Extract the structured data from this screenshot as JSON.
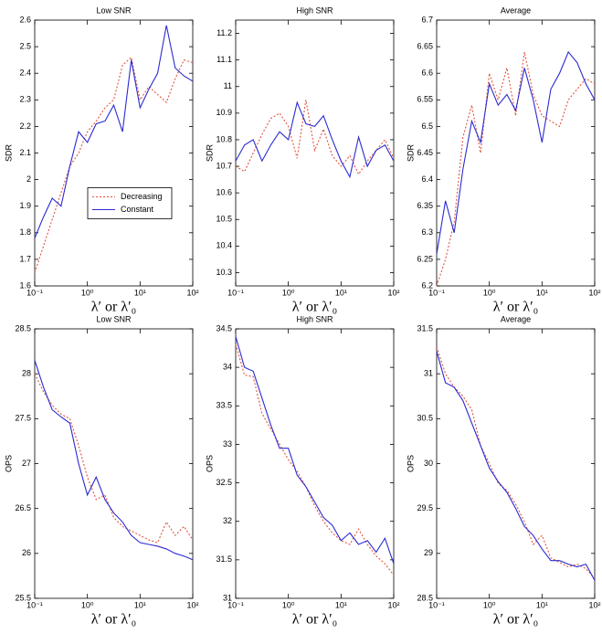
{
  "chart_data": [
    {
      "type": "line",
      "title": "Low SNR",
      "ylabel": "SDR",
      "xlabel": "λ′ or λ′₀",
      "xscale": "log",
      "legend": "center left",
      "x": [
        0.1,
        0.147,
        0.215,
        0.316,
        0.464,
        0.681,
        1,
        1.468,
        2.154,
        3.162,
        4.642,
        6.813,
        10,
        14.68,
        21.54,
        31.62,
        46.42,
        68.13,
        100
      ],
      "xlim": [
        0.1,
        100
      ],
      "xticks": [
        {
          "value": 0.1,
          "label": "10⁻¹"
        },
        {
          "value": 1,
          "label": "10⁰"
        },
        {
          "value": 10,
          "label": "10¹"
        },
        {
          "value": 100,
          "label": "10²"
        }
      ],
      "ylim": [
        1.6,
        2.6
      ],
      "yticks": [
        1.6,
        1.7,
        1.8,
        1.9,
        2,
        2.1,
        2.2,
        2.3,
        2.4,
        2.5,
        2.6
      ],
      "series": [
        {
          "name": "Decreasing",
          "color": "#e0533c",
          "linestyle": "dotted",
          "values": [
            1.65,
            1.75,
            1.85,
            1.95,
            2.05,
            2.1,
            2.18,
            2.22,
            2.27,
            2.3,
            2.43,
            2.46,
            2.3,
            2.35,
            2.32,
            2.29,
            2.38,
            2.45,
            2.44
          ]
        },
        {
          "name": "Constant",
          "color": "#2b2bd1",
          "linestyle": "solid",
          "values": [
            1.78,
            1.86,
            1.93,
            1.9,
            2.05,
            2.18,
            2.14,
            2.21,
            2.22,
            2.28,
            2.18,
            2.45,
            2.27,
            2.34,
            2.4,
            2.58,
            2.42,
            2.39,
            2.37
          ]
        }
      ]
    },
    {
      "type": "line",
      "title": "High SNR",
      "ylabel": "SDR",
      "xlabel": "λ′ or λ′₀",
      "xscale": "log",
      "x": [
        0.1,
        0.147,
        0.215,
        0.316,
        0.464,
        0.681,
        1,
        1.468,
        2.154,
        3.162,
        4.642,
        6.813,
        10,
        14.68,
        21.54,
        31.62,
        46.42,
        68.13,
        100
      ],
      "xlim": [
        0.1,
        100
      ],
      "xticks": [
        {
          "value": 0.1,
          "label": "10⁻¹"
        },
        {
          "value": 1,
          "label": "10⁰"
        },
        {
          "value": 10,
          "label": "10¹"
        },
        {
          "value": 100,
          "label": "10²"
        }
      ],
      "ylim": [
        10.25,
        11.25
      ],
      "yticks": [
        10.3,
        10.4,
        10.5,
        10.6,
        10.7,
        10.8,
        10.9,
        11,
        11.1,
        11.2
      ],
      "series": [
        {
          "color": "#e0533c",
          "linestyle": "dotted",
          "values": [
            10.7,
            10.68,
            10.75,
            10.82,
            10.88,
            10.9,
            10.85,
            10.73,
            10.95,
            10.76,
            10.84,
            10.74,
            10.7,
            10.74,
            10.67,
            10.72,
            10.76,
            10.8,
            10.73
          ]
        },
        {
          "color": "#2b2bd1",
          "linestyle": "solid",
          "values": [
            10.72,
            10.78,
            10.8,
            10.72,
            10.78,
            10.83,
            10.8,
            10.94,
            10.86,
            10.85,
            10.89,
            10.8,
            10.72,
            10.66,
            10.81,
            10.7,
            10.76,
            10.78,
            10.72
          ]
        }
      ]
    },
    {
      "type": "line",
      "title": "Average",
      "ylabel": "SDR",
      "xlabel": "λ′ or λ′₀",
      "xscale": "log",
      "x": [
        0.1,
        0.147,
        0.215,
        0.316,
        0.464,
        0.681,
        1,
        1.468,
        2.154,
        3.162,
        4.642,
        6.813,
        10,
        14.68,
        21.54,
        31.62,
        46.42,
        68.13,
        100
      ],
      "xlim": [
        0.1,
        100
      ],
      "xticks": [
        {
          "value": 0.1,
          "label": "10⁻¹"
        },
        {
          "value": 1,
          "label": "10⁰"
        },
        {
          "value": 10,
          "label": "10¹"
        },
        {
          "value": 100,
          "label": "10²"
        }
      ],
      "ylim": [
        6.2,
        6.7
      ],
      "yticks": [
        6.2,
        6.25,
        6.3,
        6.35,
        6.4,
        6.45,
        6.5,
        6.55,
        6.6,
        6.65,
        6.7
      ],
      "series": [
        {
          "color": "#e0533c",
          "linestyle": "dotted",
          "values": [
            6.2,
            6.25,
            6.32,
            6.48,
            6.54,
            6.45,
            6.6,
            6.55,
            6.61,
            6.52,
            6.64,
            6.56,
            6.52,
            6.51,
            6.5,
            6.55,
            6.57,
            6.59,
            6.58
          ]
        },
        {
          "color": "#2b2bd1",
          "linestyle": "solid",
          "values": [
            6.26,
            6.36,
            6.3,
            6.42,
            6.51,
            6.47,
            6.58,
            6.54,
            6.56,
            6.53,
            6.61,
            6.55,
            6.47,
            6.57,
            6.6,
            6.64,
            6.62,
            6.58,
            6.55
          ]
        }
      ]
    },
    {
      "type": "line",
      "title": "Low SNR",
      "ylabel": "OPS",
      "xlabel": "λ′ or λ′₀",
      "xscale": "log",
      "x": [
        0.1,
        0.147,
        0.215,
        0.316,
        0.464,
        0.681,
        1,
        1.468,
        2.154,
        3.162,
        4.642,
        6.813,
        10,
        14.68,
        21.54,
        31.62,
        46.42,
        68.13,
        100
      ],
      "xlim": [
        0.1,
        100
      ],
      "xticks": [
        {
          "value": 0.1,
          "label": "10⁻¹"
        },
        {
          "value": 1,
          "label": "10⁰"
        },
        {
          "value": 10,
          "label": "10¹"
        },
        {
          "value": 100,
          "label": "10²"
        }
      ],
      "ylim": [
        25.5,
        28.5
      ],
      "yticks": [
        25.5,
        26,
        26.5,
        27,
        27.5,
        28,
        28.5
      ],
      "series": [
        {
          "color": "#e0533c",
          "linestyle": "dotted",
          "values": [
            28.0,
            27.8,
            27.65,
            27.55,
            27.5,
            27.2,
            26.85,
            26.6,
            26.65,
            26.4,
            26.3,
            26.25,
            26.2,
            26.15,
            26.12,
            26.35,
            26.2,
            26.3,
            26.15
          ]
        },
        {
          "color": "#2b2bd1",
          "linestyle": "solid",
          "values": [
            28.15,
            27.85,
            27.6,
            27.52,
            27.45,
            27.0,
            26.65,
            26.85,
            26.6,
            26.45,
            26.35,
            26.2,
            26.12,
            26.1,
            26.08,
            26.05,
            26.0,
            25.97,
            25.93
          ]
        }
      ]
    },
    {
      "type": "line",
      "title": "High SNR",
      "ylabel": "OPS",
      "xlabel": "λ′ or λ′₀",
      "xscale": "log",
      "x": [
        0.1,
        0.147,
        0.215,
        0.316,
        0.464,
        0.681,
        1,
        1.468,
        2.154,
        3.162,
        4.642,
        6.813,
        10,
        14.68,
        21.54,
        31.62,
        46.42,
        68.13,
        100
      ],
      "xlim": [
        0.1,
        100
      ],
      "xticks": [
        {
          "value": 0.1,
          "label": "10⁻¹"
        },
        {
          "value": 1,
          "label": "10⁰"
        },
        {
          "value": 10,
          "label": "10¹"
        },
        {
          "value": 100,
          "label": "10²"
        }
      ],
      "ylim": [
        31,
        34.5
      ],
      "yticks": [
        31,
        31.5,
        32,
        32.5,
        33,
        33.5,
        34,
        34.5
      ],
      "series": [
        {
          "color": "#e0533c",
          "linestyle": "dotted",
          "values": [
            34.3,
            33.9,
            33.88,
            33.4,
            33.2,
            33.0,
            32.8,
            32.65,
            32.45,
            32.2,
            32.0,
            31.85,
            31.75,
            31.7,
            31.9,
            31.7,
            31.55,
            31.45,
            31.3
          ]
        },
        {
          "color": "#2b2bd1",
          "linestyle": "solid",
          "values": [
            34.4,
            34.0,
            33.95,
            33.6,
            33.25,
            32.95,
            32.95,
            32.6,
            32.45,
            32.25,
            32.05,
            31.95,
            31.75,
            31.85,
            31.7,
            31.75,
            31.6,
            31.78,
            31.45
          ]
        }
      ]
    },
    {
      "type": "line",
      "title": "Average",
      "ylabel": "OPS",
      "xlabel": "λ′ or λ′₀",
      "xscale": "log",
      "x": [
        0.1,
        0.147,
        0.215,
        0.316,
        0.464,
        0.681,
        1,
        1.468,
        2.154,
        3.162,
        4.642,
        6.813,
        10,
        14.68,
        21.54,
        31.62,
        46.42,
        68.13,
        100
      ],
      "xlim": [
        0.1,
        100
      ],
      "xticks": [
        {
          "value": 0.1,
          "label": "10⁻¹"
        },
        {
          "value": 1,
          "label": "10⁰"
        },
        {
          "value": 10,
          "label": "10¹"
        },
        {
          "value": 100,
          "label": "10²"
        }
      ],
      "ylim": [
        28.5,
        31.5
      ],
      "yticks": [
        28.5,
        29,
        29.5,
        30,
        30.5,
        31,
        31.5
      ],
      "series": [
        {
          "color": "#e0533c",
          "linestyle": "dotted",
          "values": [
            31.3,
            31.0,
            30.85,
            30.75,
            30.6,
            30.2,
            30.0,
            29.78,
            29.7,
            29.55,
            29.35,
            29.1,
            29.2,
            28.95,
            28.9,
            28.85,
            28.88,
            28.83,
            28.72
          ]
        },
        {
          "color": "#2b2bd1",
          "linestyle": "solid",
          "values": [
            31.25,
            30.9,
            30.85,
            30.7,
            30.45,
            30.2,
            29.95,
            29.8,
            29.68,
            29.5,
            29.3,
            29.2,
            29.05,
            28.92,
            28.92,
            28.88,
            28.85,
            28.88,
            28.7
          ]
        }
      ]
    }
  ]
}
